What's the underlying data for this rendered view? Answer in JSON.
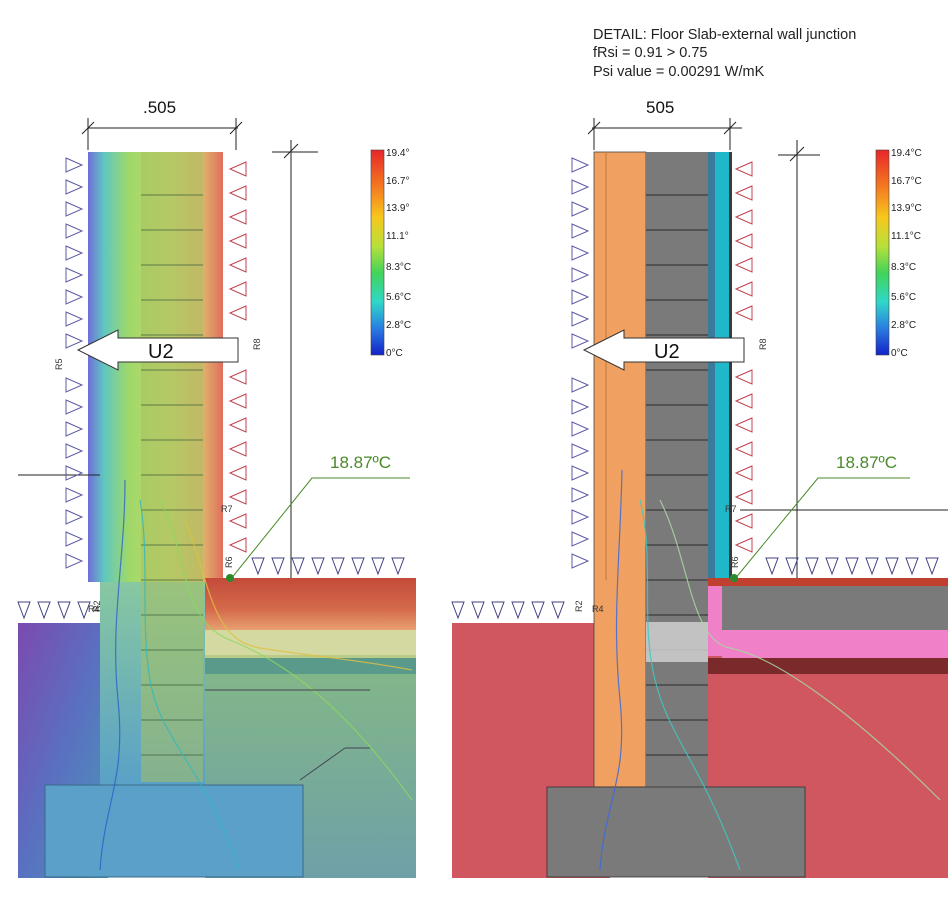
{
  "header": {
    "detail": "DETAIL: Floor Slab-external wall junction",
    "frsi": "fRsi = 0.91 > 0.75",
    "psi": "Psi value = 0.00291 W/mK"
  },
  "left_panel": {
    "dimension": ".505",
    "arrow_label": "U2",
    "surface_temp": "18.87ºC",
    "legend": [
      "19.4°",
      "16.7°",
      "13.9°",
      "11.1°",
      "8.3°C",
      "5.6°C",
      "2.8°C",
      "0°C"
    ]
  },
  "right_panel": {
    "dimension": "505",
    "arrow_label": "U2",
    "surface_temp": "18.87ºC",
    "legend": [
      "19.4°C",
      "16.7°C",
      "13.9°C",
      "11.1°C",
      "8.3°C",
      "5.6°C",
      "2.8°C",
      "0°C"
    ]
  },
  "boundary_labels": {
    "r5": "R5",
    "r8": "R8",
    "r7": "R7",
    "r6": "R6",
    "r2": "R2",
    "r4": "R4"
  },
  "legend_colors": [
    "#e8262a",
    "#f47a20",
    "#f7c81e",
    "#b7e03a",
    "#43d35a",
    "#2fd8c8",
    "#2a7de1",
    "#1522c9"
  ]
}
